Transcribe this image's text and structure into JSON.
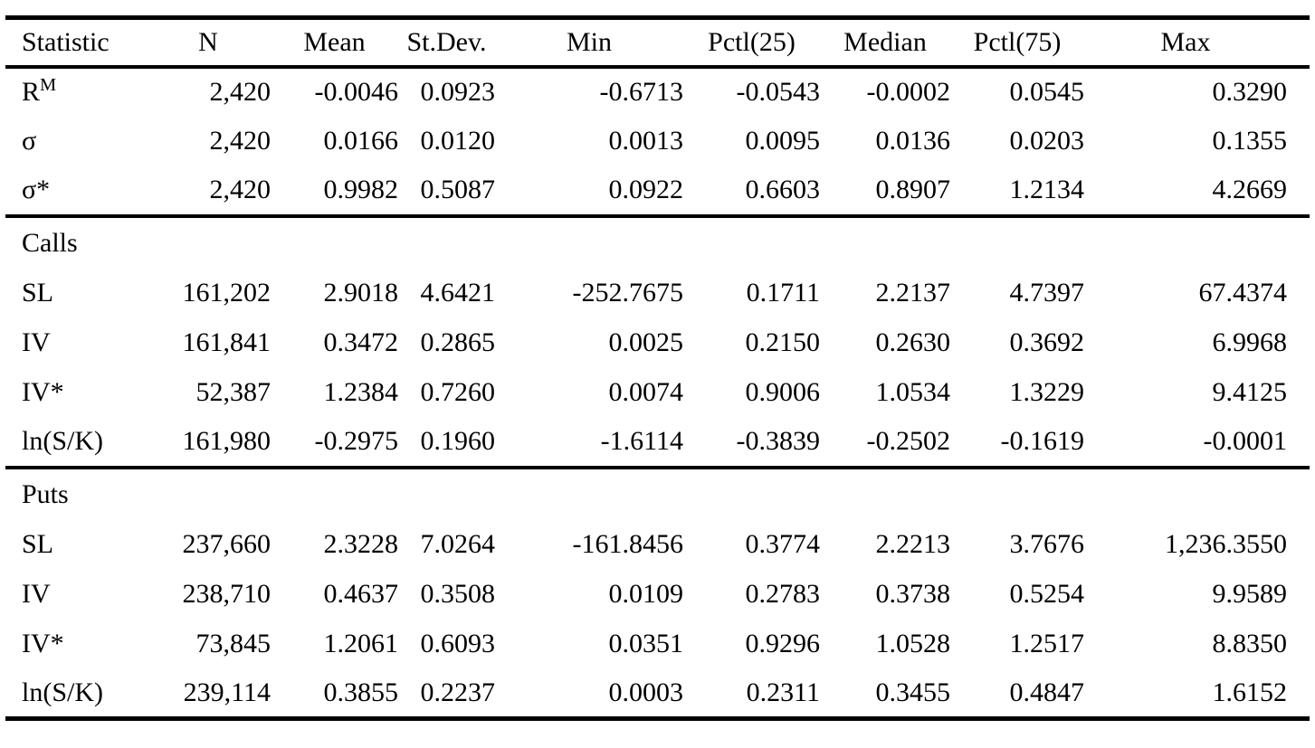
{
  "table": {
    "columns": [
      "Statistic",
      "N",
      "Mean",
      "St.Dev.",
      "Min",
      "Pctl(25)",
      "Median",
      "Pctl(75)",
      "Max"
    ],
    "sections": [
      {
        "label": "",
        "rows": [
          {
            "label": "R",
            "label_sup": "M",
            "values": [
              "2,420",
              "-0.0046",
              "0.0923",
              "-0.6713",
              "-0.0543",
              "-0.0002",
              "0.0545",
              "0.3290"
            ]
          },
          {
            "label": "σ",
            "values": [
              "2,420",
              "0.0166",
              "0.0120",
              "0.0013",
              "0.0095",
              "0.0136",
              "0.0203",
              "0.1355"
            ]
          },
          {
            "label": "σ*",
            "values": [
              "2,420",
              "0.9982",
              "0.5087",
              "0.0922",
              "0.6603",
              "0.8907",
              "1.2134",
              "4.2669"
            ]
          }
        ]
      },
      {
        "label": "Calls",
        "rows": [
          {
            "label": "SL",
            "values": [
              "161,202",
              "2.9018",
              "4.6421",
              "-252.7675",
              "0.1711",
              "2.2137",
              "4.7397",
              "67.4374"
            ]
          },
          {
            "label": "IV",
            "values": [
              "161,841",
              "0.3472",
              "0.2865",
              "0.0025",
              "0.2150",
              "0.2630",
              "0.3692",
              "6.9968"
            ]
          },
          {
            "label": "IV*",
            "values": [
              "52,387",
              "1.2384",
              "0.7260",
              "0.0074",
              "0.9006",
              "1.0534",
              "1.3229",
              "9.4125"
            ]
          },
          {
            "label": "ln(S/K)",
            "values": [
              "161,980",
              "-0.2975",
              "0.1960",
              "-1.6114",
              "-0.3839",
              "-0.2502",
              "-0.1619",
              "-0.0001"
            ]
          }
        ]
      },
      {
        "label": "Puts",
        "rows": [
          {
            "label": "SL",
            "values": [
              "237,660",
              "2.3228",
              "7.0264",
              "-161.8456",
              "0.3774",
              "2.2213",
              "3.7676",
              "1,236.3550"
            ]
          },
          {
            "label": "IV",
            "values": [
              "238,710",
              "0.4637",
              "0.3508",
              "0.0109",
              "0.2783",
              "0.3738",
              "0.5254",
              "9.9589"
            ]
          },
          {
            "label": "IV*",
            "values": [
              "73,845",
              "1.2061",
              "0.6093",
              "0.0351",
              "0.9296",
              "1.0528",
              "1.2517",
              "8.8350"
            ]
          },
          {
            "label": "ln(S/K)",
            "values": [
              "239,114",
              "0.3855",
              "0.2237",
              "0.0003",
              "0.2311",
              "0.3455",
              "0.4847",
              "1.6152"
            ]
          }
        ]
      }
    ],
    "colors": {
      "text": "#000000",
      "background": "#ffffff",
      "rule": "#000000"
    }
  }
}
